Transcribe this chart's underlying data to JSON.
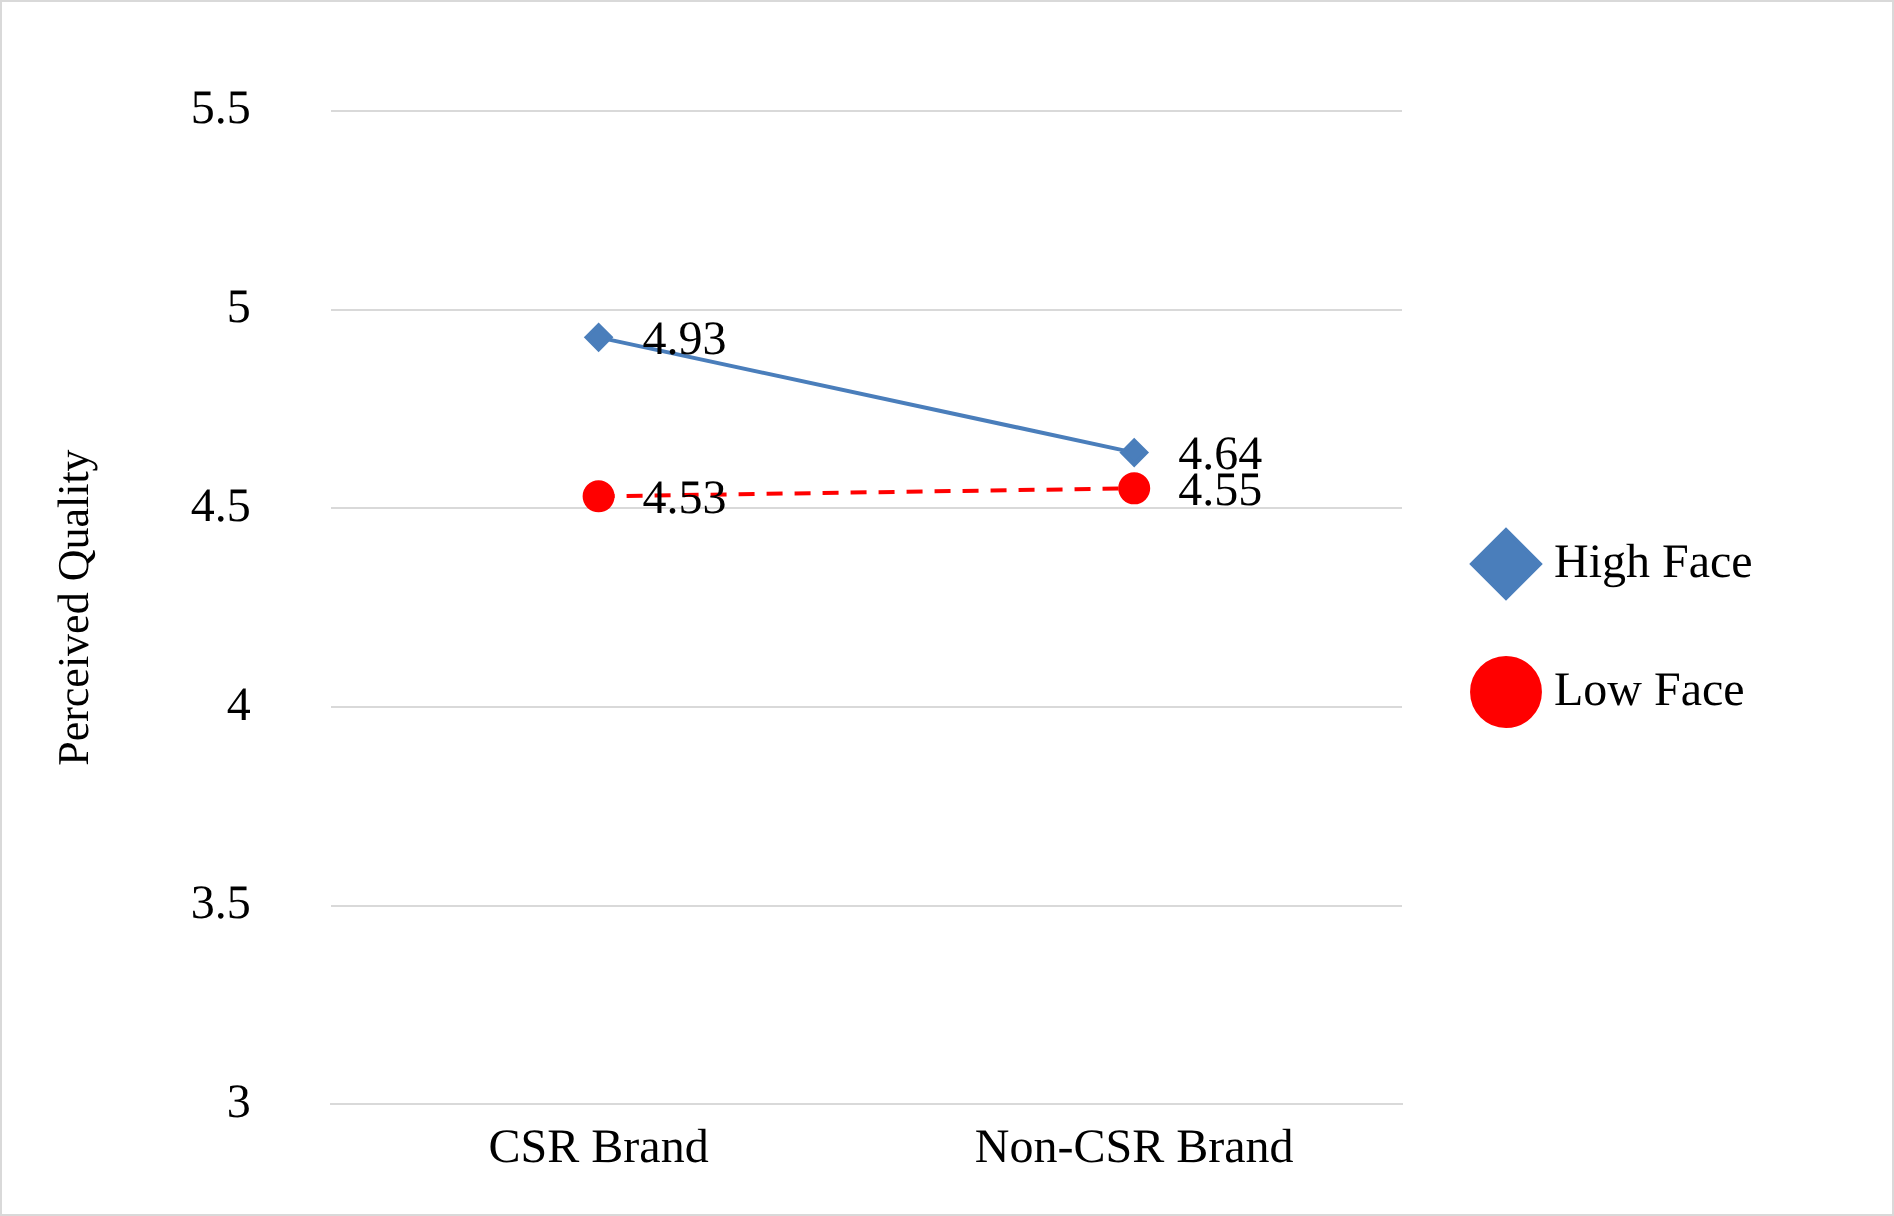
{
  "chart_data": {
    "type": "line",
    "ylabel": "Perceived Quality",
    "categories": [
      "CSR Brand",
      "Non-CSR Brand"
    ],
    "series": [
      {
        "name": "High Face",
        "color": "#4a7ebb",
        "values": [
          4.93,
          4.64
        ],
        "marker": "diamond",
        "line_style": "solid"
      },
      {
        "name": "Low Face",
        "color": "#ff0000",
        "values": [
          4.53,
          4.55
        ],
        "marker": "circle",
        "line_style": "dashed"
      }
    ],
    "ylim": [
      3,
      5.5
    ],
    "yticks": [
      3,
      3.5,
      4,
      4.5,
      5,
      5.5
    ],
    "grid": "y",
    "legend": "right",
    "data_labels": true
  }
}
